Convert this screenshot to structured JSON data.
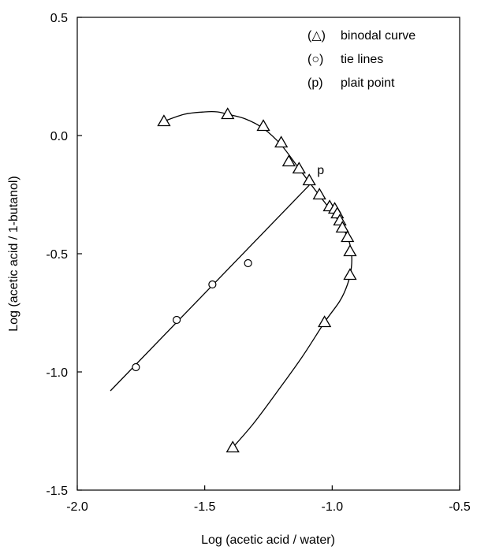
{
  "chart_data": {
    "type": "scatter",
    "title": "",
    "xlabel": "Log (acetic acid / water)",
    "ylabel": "Log (acetic acid / 1-butanol)",
    "xlim": [
      -2.0,
      -0.5
    ],
    "ylim": [
      -1.5,
      0.5
    ],
    "x_ticks": [
      -2.0,
      -1.5,
      -1.0,
      -0.5
    ],
    "x_tick_labels": [
      "-2.0",
      "-1.5",
      "-1.0",
      "-0.5"
    ],
    "y_ticks": [
      0.5,
      0.0,
      -0.5,
      -1.0,
      -1.5
    ],
    "y_tick_labels": [
      "0.5",
      "0.0",
      "-0.5",
      "-1.0",
      "-1.5"
    ],
    "grid": false,
    "legend_position": "top-right",
    "legend": [
      {
        "symbol": "(△)",
        "label": "binodal curve",
        "marker": "triangle"
      },
      {
        "symbol": "(○)",
        "label": "tie lines",
        "marker": "circle"
      },
      {
        "symbol": "(p)",
        "label": "plait point",
        "marker": "text"
      }
    ],
    "series": [
      {
        "marker": "triangle",
        "x": [
          -1.66,
          -1.41,
          -1.27,
          -1.2,
          -1.17,
          -1.13,
          -1.09,
          -1.05,
          -1.01,
          -0.99,
          -0.98,
          -0.97,
          -0.96,
          -0.94,
          -0.93,
          -0.93,
          -1.03,
          -1.39
        ],
        "y": [
          0.06,
          0.09,
          0.04,
          -0.03,
          -0.11,
          -0.14,
          -0.19,
          -0.25,
          -0.3,
          -0.31,
          -0.33,
          -0.36,
          -0.39,
          -0.43,
          -0.49,
          -0.59,
          -0.79,
          -1.32
        ]
      },
      {
        "marker": "circle",
        "x": [
          -1.77,
          -1.61,
          -1.47,
          -1.33
        ],
        "y": [
          -0.98,
          -0.78,
          -0.63,
          -0.54
        ]
      }
    ],
    "binodal_curve": {
      "x": [
        -1.66,
        -1.58,
        -1.5,
        -1.45,
        -1.41,
        -1.34,
        -1.27,
        -1.2,
        -1.13,
        -1.06,
        -1.01,
        -0.97,
        -0.94,
        -0.925,
        -0.925,
        -0.94,
        -0.97,
        -1.03,
        -1.12,
        -1.22,
        -1.31,
        -1.39
      ],
      "y": [
        0.06,
        0.09,
        0.1,
        0.1,
        0.09,
        0.07,
        0.03,
        -0.04,
        -0.14,
        -0.24,
        -0.31,
        -0.37,
        -0.43,
        -0.49,
        -0.56,
        -0.63,
        -0.7,
        -0.79,
        -0.94,
        -1.09,
        -1.22,
        -1.32
      ]
    },
    "tie_line": {
      "x": [
        -1.87,
        -1.09
      ],
      "y": [
        -1.08,
        -0.21
      ]
    },
    "plait_point": {
      "label": "p",
      "x": -1.09,
      "y": -0.21
    }
  }
}
